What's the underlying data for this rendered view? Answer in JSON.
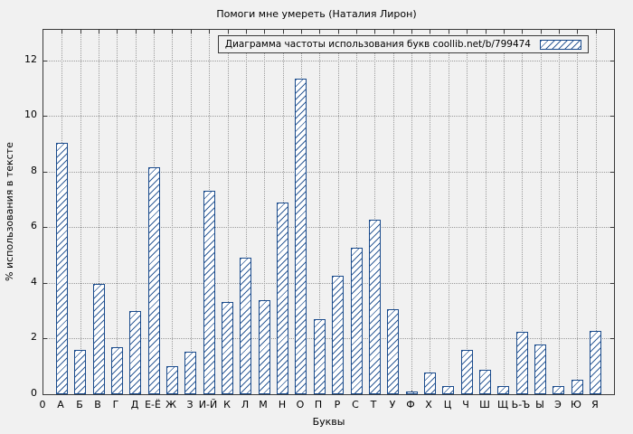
{
  "chart_data": {
    "type": "bar",
    "title": "Помоги мне умереть (Наталия Лирон)",
    "legend": "Диаграмма частоты использования букв coollib.net/b/799474",
    "xlabel": "Буквы",
    "ylabel": "% использования в тексте",
    "origin_label": "0",
    "categories": [
      "А",
      "Б",
      "В",
      "Г",
      "Д",
      "Е-Ё",
      "Ж",
      "З",
      "И-Й",
      "К",
      "Л",
      "М",
      "Н",
      "О",
      "П",
      "Р",
      "С",
      "Т",
      "У",
      "Ф",
      "Х",
      "Ц",
      "Ч",
      "Ш",
      "Щ",
      "Ь-Ъ",
      "Ы",
      "Э",
      "Ю",
      "Я"
    ],
    "values": [
      9.05,
      1.6,
      3.98,
      1.68,
      2.98,
      8.15,
      1.0,
      1.52,
      7.3,
      3.33,
      4.9,
      3.37,
      6.9,
      11.35,
      2.7,
      4.25,
      5.25,
      6.28,
      3.05,
      0.1,
      0.78,
      0.3,
      1.6,
      0.87,
      0.3,
      2.23,
      1.78,
      0.3,
      0.52,
      2.27
    ],
    "ylim": [
      0,
      13.1
    ],
    "yticks": [
      0,
      2,
      4,
      6,
      8,
      10,
      12
    ],
    "grid": "dotted",
    "legend_position": "top-right",
    "colors": {
      "bar_border": "#1a4b8c",
      "hatch": "#1a4b8c",
      "background": "#f1f1f1",
      "grid": "#9b9b9b",
      "axis": "#3a3a3a"
    }
  }
}
